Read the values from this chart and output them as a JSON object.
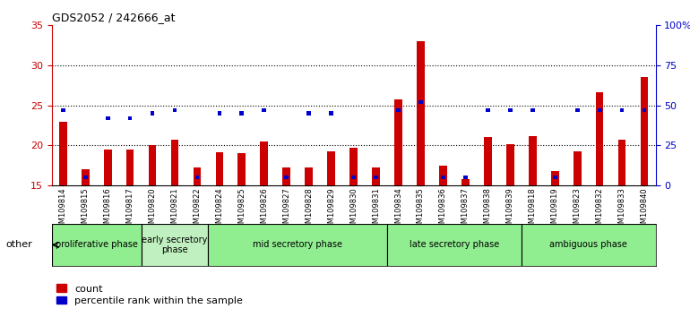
{
  "title": "GDS2052 / 242666_at",
  "samples": [
    "GSM109814",
    "GSM109815",
    "GSM109816",
    "GSM109817",
    "GSM109820",
    "GSM109821",
    "GSM109822",
    "GSM109824",
    "GSM109825",
    "GSM109826",
    "GSM109827",
    "GSM109828",
    "GSM109829",
    "GSM109830",
    "GSM109831",
    "GSM109834",
    "GSM109835",
    "GSM109836",
    "GSM109837",
    "GSM109838",
    "GSM109839",
    "GSM109818",
    "GSM109819",
    "GSM109823",
    "GSM109832",
    "GSM109833",
    "GSM109840"
  ],
  "counts": [
    23.0,
    17.0,
    19.5,
    19.5,
    20.0,
    20.7,
    17.2,
    19.2,
    19.0,
    20.5,
    17.2,
    17.2,
    19.3,
    19.7,
    17.2,
    25.8,
    33.0,
    17.5,
    15.8,
    21.0,
    20.2,
    21.2,
    16.8,
    19.3,
    26.7,
    20.7,
    28.5
  ],
  "percentiles": [
    47,
    5,
    42,
    42,
    45,
    47,
    5,
    45,
    45,
    47,
    5,
    45,
    45,
    5,
    5,
    47,
    52,
    5,
    5,
    47,
    47,
    47,
    5,
    47,
    47,
    47,
    47
  ],
  "phases": [
    {
      "label": "proliferative phase",
      "start": 0,
      "end": 4,
      "color": "#90EE90"
    },
    {
      "label": "early secretory\nphase",
      "start": 4,
      "end": 7,
      "color": "#c0f0c0"
    },
    {
      "label": "mid secretory phase",
      "start": 7,
      "end": 15,
      "color": "#90EE90"
    },
    {
      "label": "late secretory phase",
      "start": 15,
      "end": 21,
      "color": "#90EE90"
    },
    {
      "label": "ambiguous phase",
      "start": 21,
      "end": 27,
      "color": "#90EE90"
    }
  ],
  "ylim_left": [
    15,
    35
  ],
  "ylim_right": [
    0,
    100
  ],
  "yticks_left": [
    15,
    20,
    25,
    30,
    35
  ],
  "yticks_right": [
    0,
    25,
    50,
    75,
    100
  ],
  "bar_color": "#cc0000",
  "pct_color": "#0000cc",
  "bg_color": "#ffffff",
  "xtick_bg": "#d8d8d8",
  "left_tick_color": "#cc0000",
  "right_tick_color": "#0000cc",
  "grid_dotted_values": [
    20,
    25,
    30
  ],
  "bar_width": 0.35
}
